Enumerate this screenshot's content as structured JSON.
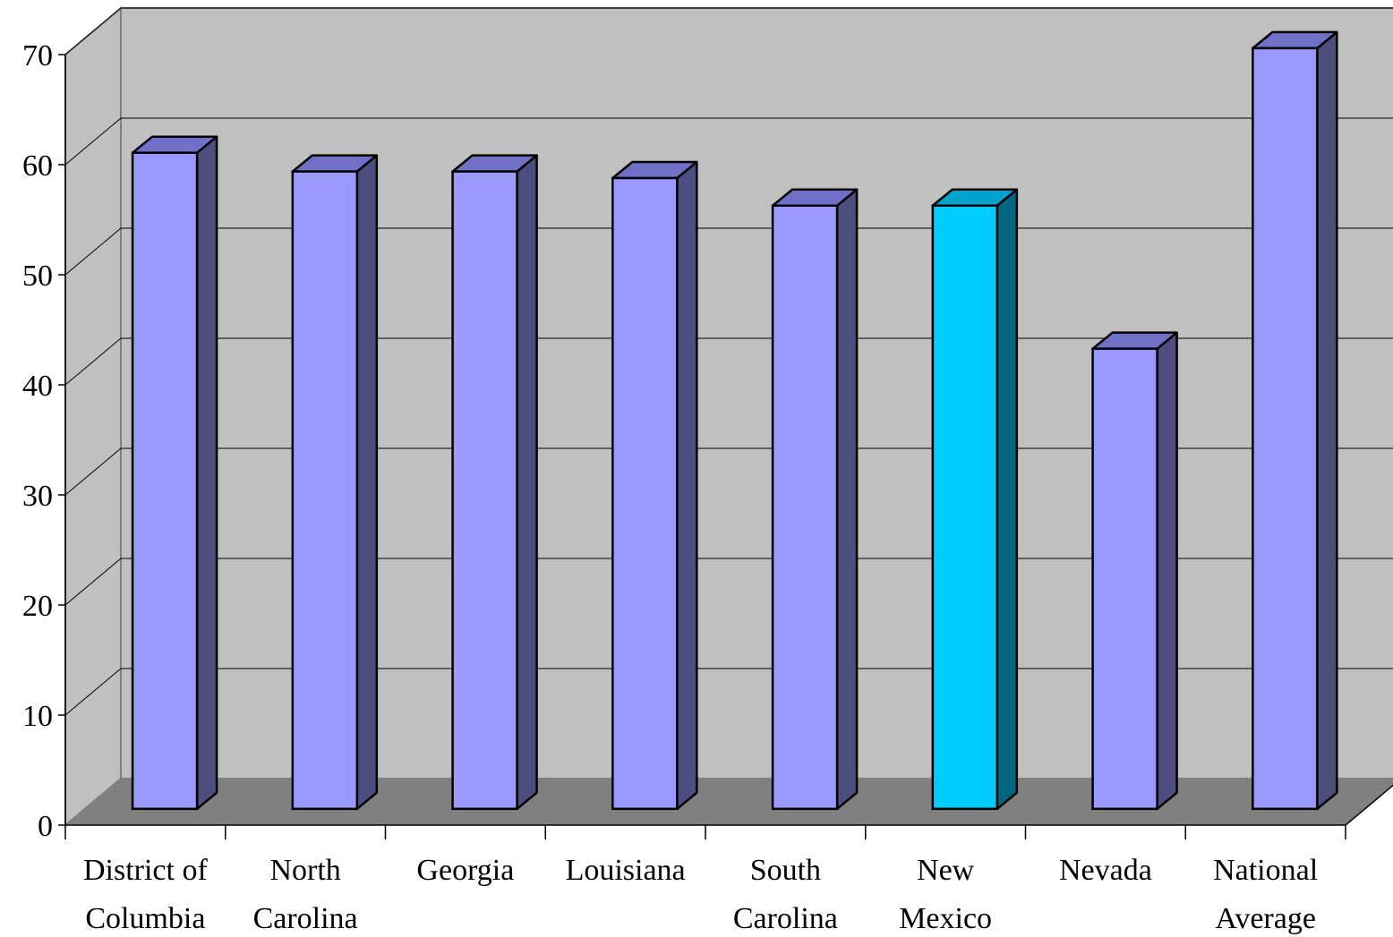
{
  "chart_data": {
    "type": "bar",
    "style": "3d-column",
    "categories": [
      [
        "District of",
        "Columbia"
      ],
      [
        "North",
        "Carolina"
      ],
      [
        "Georgia"
      ],
      [
        "Louisiana"
      ],
      [
        "South",
        "Carolina"
      ],
      [
        "New",
        "Mexico"
      ],
      [
        "Nevada"
      ],
      [
        "National",
        "Average"
      ]
    ],
    "values": [
      59.6,
      57.9,
      57.9,
      57.3,
      54.8,
      54.8,
      41.8,
      69.1
    ],
    "highlight_index": 5,
    "ylim": [
      0,
      70
    ],
    "yticks": [
      0,
      10,
      20,
      30,
      40,
      50,
      60,
      70
    ],
    "grid": true,
    "colors": {
      "bar_front": "#9999ff",
      "bar_top": "#7070c8",
      "bar_side": "#4d4d80",
      "highlight_front": "#00ccff",
      "highlight_top": "#00a3cc",
      "highlight_side": "#006680",
      "back_wall": "#c0c0c0",
      "side_wall": "#c0c0c0",
      "floor": "#808080",
      "gridline": "#000000"
    }
  }
}
